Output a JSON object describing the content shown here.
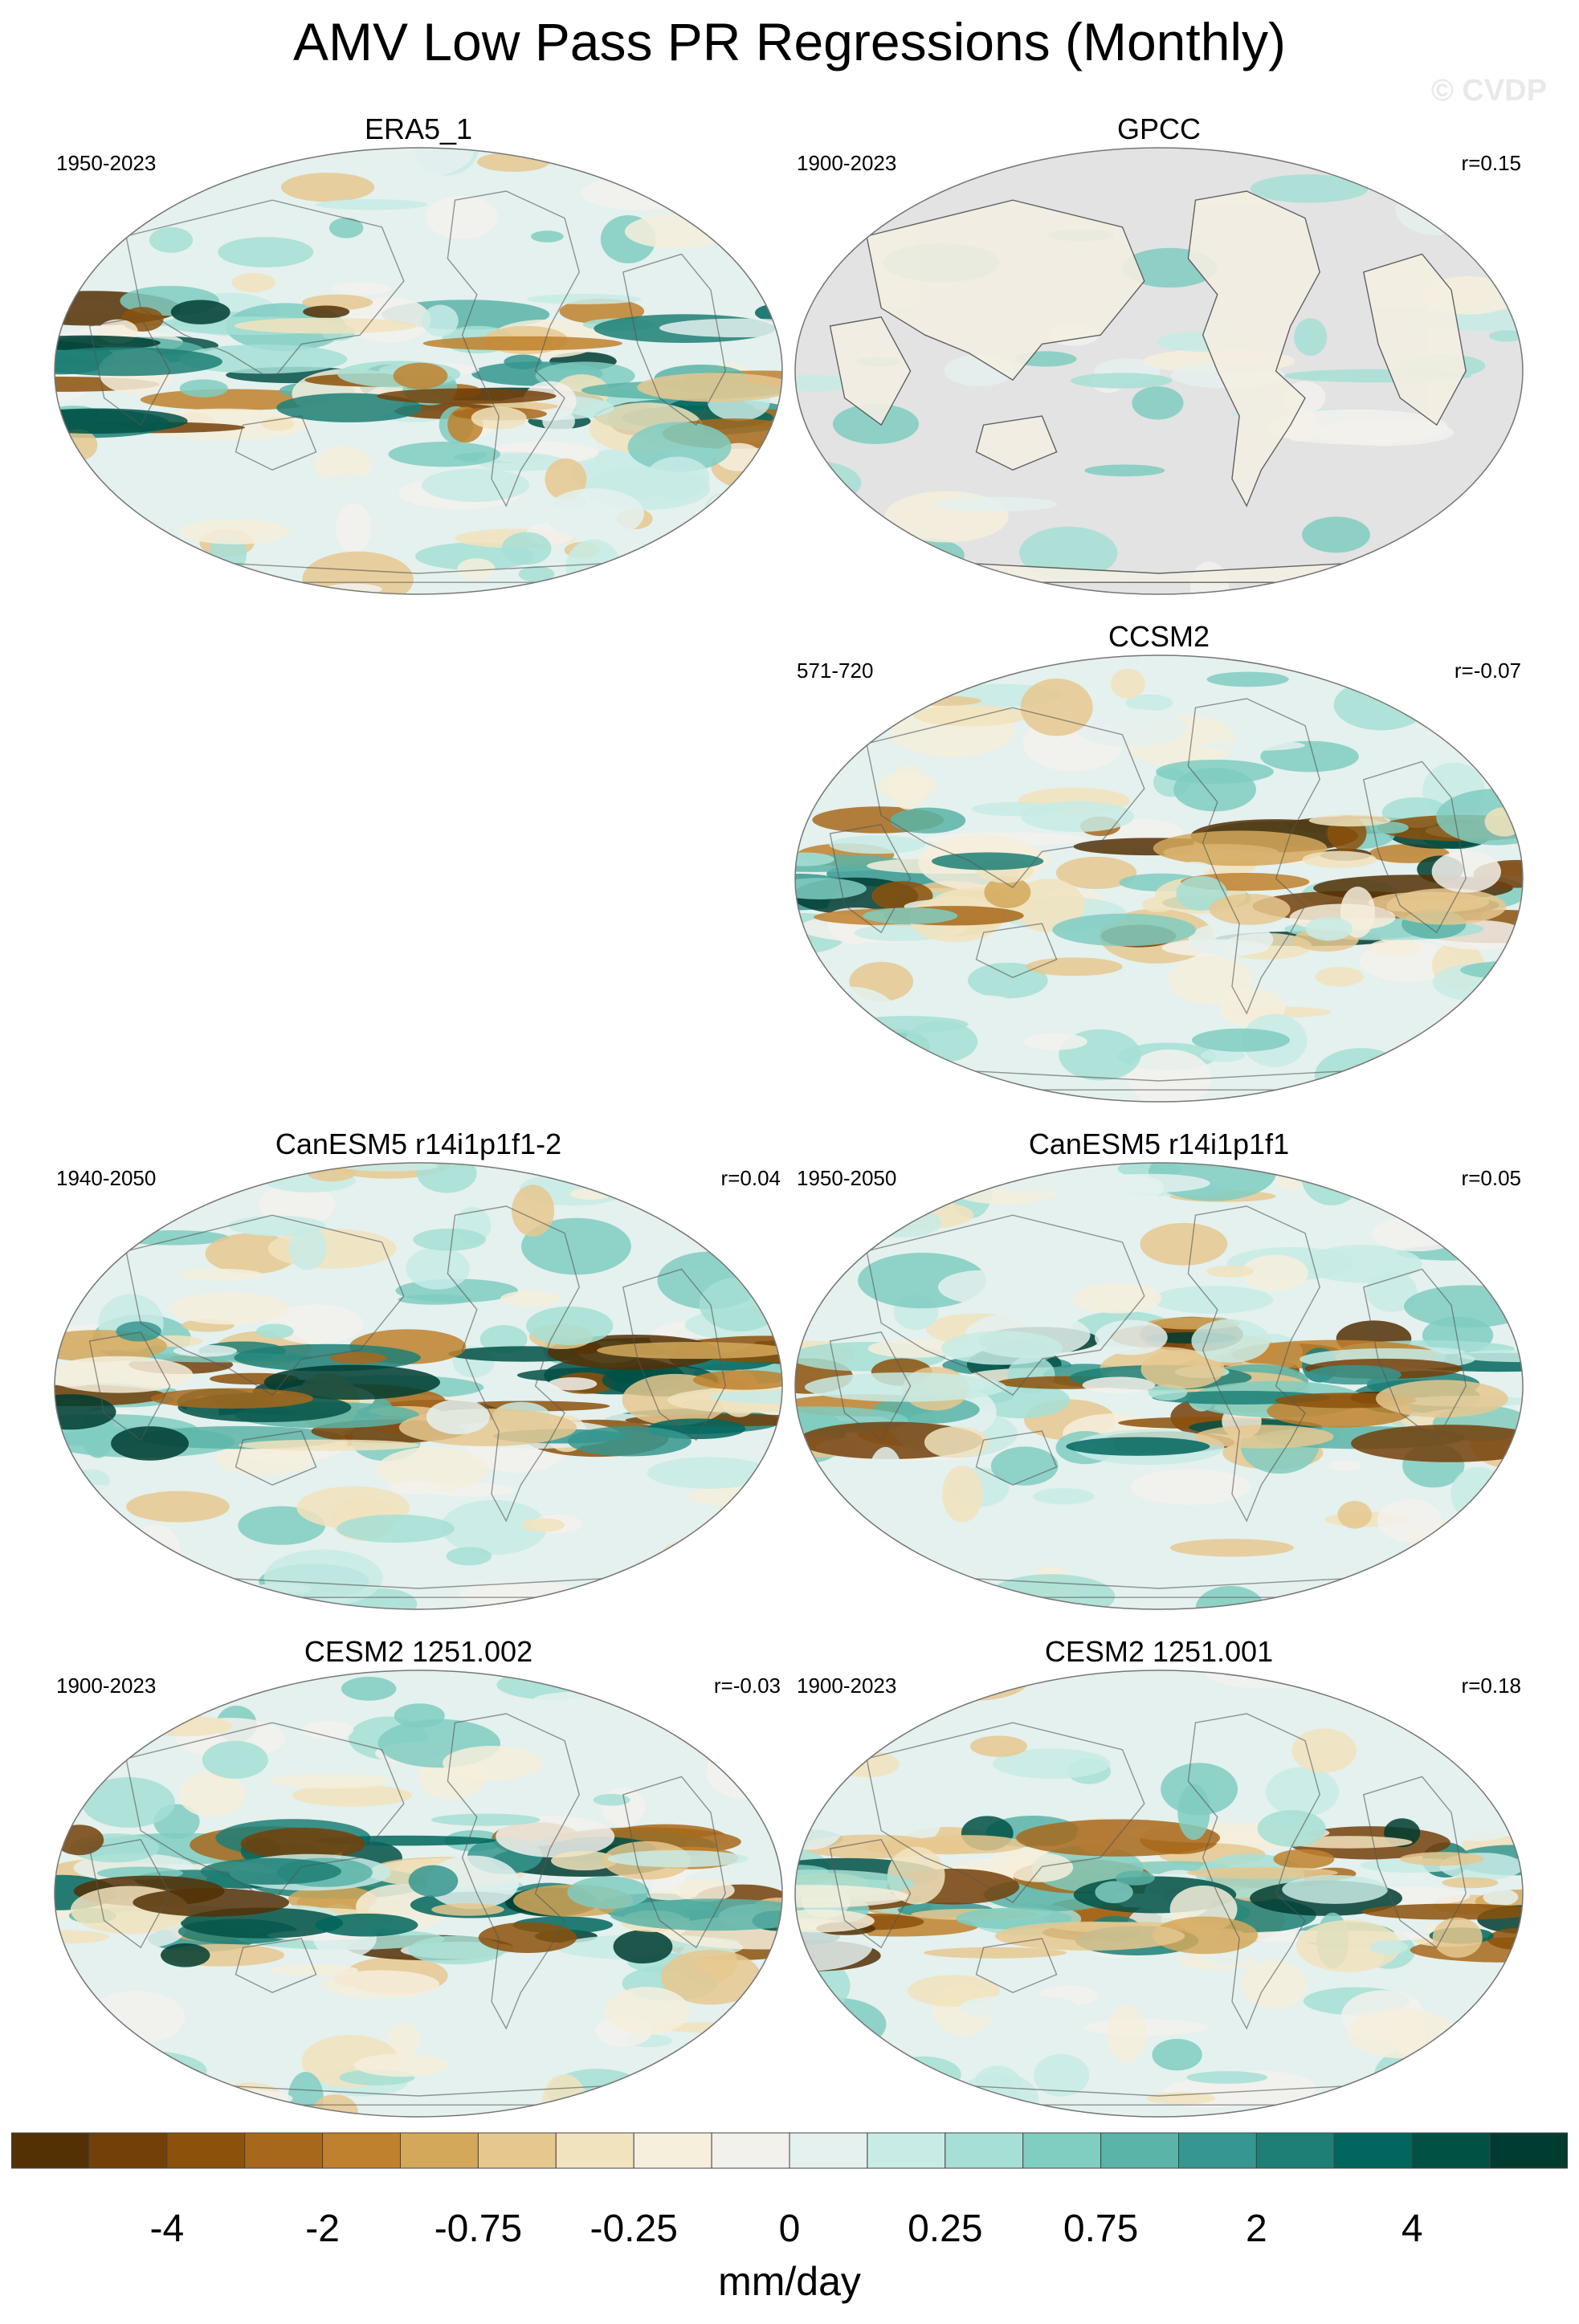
{
  "title": "AMV Low Pass PR Regressions (Monthly)",
  "watermark": "© CVDP",
  "panels": [
    {
      "name": "ERA5_1",
      "years": "1950-2023",
      "corr": "",
      "bg": "full",
      "blobs": [
        [
          -0.6,
          0.5,
          0.04,
          0.05,
          0.04
        ],
        [
          -0.4,
          0.4,
          0.1,
          0.03,
          0.06
        ],
        [
          0.55,
          0.47,
          0.05,
          0.04,
          -0.06
        ],
        [
          0.2,
          0.45,
          0.03,
          0.05,
          -0.05
        ],
        [
          0.35,
          0.42,
          0.02,
          0.02,
          -0.03
        ],
        [
          0.1,
          0.55,
          0.06,
          0.06,
          0.03
        ],
        [
          0.28,
          0.6,
          0.04,
          0.05,
          -0.06
        ],
        [
          0.7,
          0.55,
          0.02,
          0.06,
          0.05
        ]
      ]
    },
    {
      "name": "GPCC",
      "years": "1900-2023",
      "corr": "r=0.15",
      "bg": "land"
    },
    {
      "name": "CCSM2",
      "years": "571-720",
      "corr": "r=-0.07",
      "bg": "full"
    },
    {
      "name": "CanESM5 r14i1p1f1-2",
      "years": "1940-2050",
      "corr": "r=0.04",
      "bg": "full"
    },
    {
      "name": "CanESM5 r14i1p1f1",
      "years": "1950-2050",
      "corr": "r=0.05",
      "bg": "full"
    },
    {
      "name": "CESM2 1251.002",
      "years": "1900-2023",
      "corr": "r=-0.03",
      "bg": "full"
    },
    {
      "name": "CESM2 1251.001",
      "years": "1900-2023",
      "corr": "r=0.18",
      "bg": "full"
    }
  ],
  "colorbar": {
    "colors": [
      "#543005",
      "#744009",
      "#8c510a",
      "#a8681b",
      "#bf812d",
      "#d4a85a",
      "#e6c88f",
      "#f1e3bd",
      "#f6efdc",
      "#f3f1ec",
      "#e4f1ee",
      "#c8ebe5",
      "#a6dfd5",
      "#80cdc1",
      "#5ab4a7",
      "#35978f",
      "#1d7f75",
      "#01665e",
      "#015145",
      "#003c30"
    ],
    "tick_labels": [
      "-4",
      "-2",
      "-0.75",
      "-0.25",
      "0",
      "0.25",
      "0.75",
      "2",
      "4"
    ],
    "units": "mm/day"
  },
  "chart_data": {
    "type": "heatmap",
    "title": "AMV Low Pass PR Regressions (Monthly)",
    "colorbar_units": "mm/day",
    "colorbar_levels": [
      "-4",
      "-2",
      "-0.75",
      "-0.25",
      "0",
      "0.25",
      "0.75",
      "2",
      "4"
    ],
    "maps": [
      {
        "dataset": "ERA5_1",
        "period": "1950-2023",
        "pattern_correlation": null
      },
      {
        "dataset": "GPCC",
        "period": "1900-2023",
        "pattern_correlation": 0.15
      },
      {
        "dataset": "CCSM2",
        "period": "571-720",
        "pattern_correlation": -0.07
      },
      {
        "dataset": "CanESM5 r14i1p1f1-2",
        "period": "1940-2050",
        "pattern_correlation": 0.04
      },
      {
        "dataset": "CanESM5 r14i1p1f1",
        "period": "1950-2050",
        "pattern_correlation": 0.05
      },
      {
        "dataset": "CESM2 1251.002",
        "period": "1900-2023",
        "pattern_correlation": -0.03
      },
      {
        "dataset": "CESM2 1251.001",
        "period": "1900-2023",
        "pattern_correlation": 0.18
      }
    ]
  }
}
